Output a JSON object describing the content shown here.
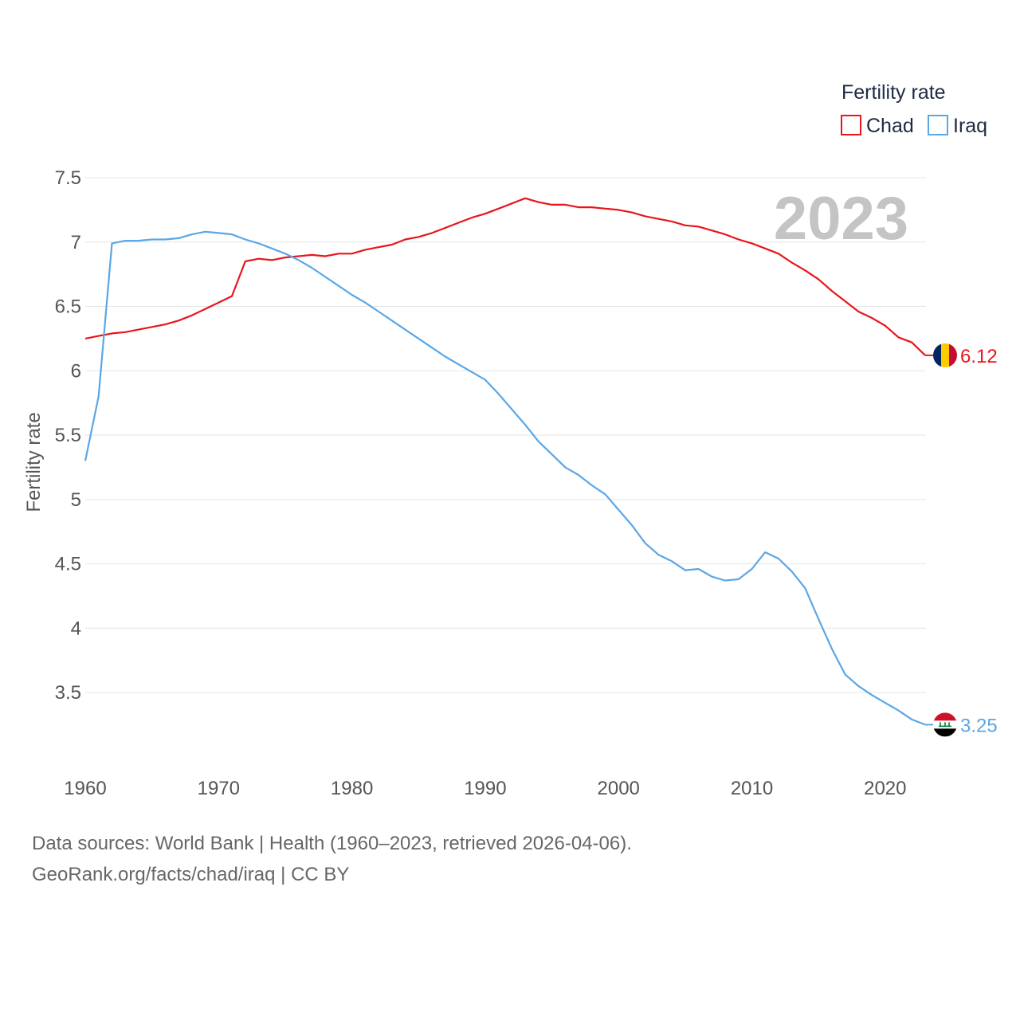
{
  "chart_data": {
    "type": "line",
    "year_label": "2023",
    "xlabel": "",
    "ylabel": "Fertility rate",
    "xlim": [
      1960,
      2023
    ],
    "ylim": [
      3.0,
      7.6
    ],
    "x_ticks": [
      "1960",
      "1970",
      "1980",
      "1990",
      "2000",
      "2010",
      "2020"
    ],
    "y_ticks": [
      "3.5",
      "4",
      "4.5",
      "5",
      "5.5",
      "6",
      "6.5",
      "7",
      "7.5"
    ],
    "grid": true,
    "legend": {
      "title": "Fertility rate",
      "placement": "top-right",
      "entries": [
        "Chad",
        "Iraq"
      ]
    },
    "x": [
      1960,
      1961,
      1962,
      1963,
      1964,
      1965,
      1966,
      1967,
      1968,
      1969,
      1970,
      1971,
      1972,
      1973,
      1974,
      1975,
      1976,
      1977,
      1978,
      1979,
      1980,
      1981,
      1982,
      1983,
      1984,
      1985,
      1986,
      1987,
      1988,
      1989,
      1990,
      1991,
      1992,
      1993,
      1994,
      1995,
      1996,
      1997,
      1998,
      1999,
      2000,
      2001,
      2002,
      2003,
      2004,
      2005,
      2006,
      2007,
      2008,
      2009,
      2010,
      2011,
      2012,
      2013,
      2014,
      2015,
      2016,
      2017,
      2018,
      2019,
      2020,
      2021,
      2022,
      2023
    ],
    "series": [
      {
        "name": "Chad",
        "color": "#e8151b",
        "end_label": "6.12",
        "values": [
          6.25,
          6.27,
          6.29,
          6.3,
          6.32,
          6.34,
          6.36,
          6.39,
          6.43,
          6.48,
          6.53,
          6.58,
          6.85,
          6.87,
          6.86,
          6.88,
          6.89,
          6.9,
          6.89,
          6.91,
          6.91,
          6.94,
          6.96,
          6.98,
          7.02,
          7.04,
          7.07,
          7.11,
          7.15,
          7.19,
          7.22,
          7.26,
          7.3,
          7.34,
          7.31,
          7.29,
          7.29,
          7.27,
          7.27,
          7.26,
          7.25,
          7.23,
          7.2,
          7.18,
          7.16,
          7.13,
          7.12,
          7.09,
          7.06,
          7.02,
          6.99,
          6.95,
          6.91,
          6.84,
          6.78,
          6.71,
          6.62,
          6.54,
          6.46,
          6.41,
          6.35,
          6.26,
          6.22,
          6.12
        ]
      },
      {
        "name": "Iraq",
        "color": "#5aa6e6",
        "end_label": "3.25",
        "values": [
          5.3,
          5.8,
          6.99,
          7.01,
          7.01,
          7.02,
          7.02,
          7.03,
          7.06,
          7.08,
          7.07,
          7.06,
          7.02,
          6.99,
          6.95,
          6.91,
          6.86,
          6.8,
          6.73,
          6.66,
          6.59,
          6.53,
          6.46,
          6.39,
          6.32,
          6.25,
          6.18,
          6.11,
          6.05,
          5.99,
          5.93,
          5.82,
          5.7,
          5.58,
          5.45,
          5.35,
          5.25,
          5.19,
          5.11,
          5.04,
          4.92,
          4.8,
          4.66,
          4.57,
          4.52,
          4.45,
          4.46,
          4.4,
          4.37,
          4.38,
          4.46,
          4.59,
          4.54,
          4.44,
          4.31,
          4.07,
          3.84,
          3.64,
          3.55,
          3.48,
          3.42,
          3.36,
          3.29,
          3.25
        ]
      }
    ]
  },
  "footer": {
    "source": "Data sources: World Bank | Health (1960–2023, retrieved 2026-04-06).",
    "credit": "GeoRank.org/facts/chad/iraq | CC BY"
  },
  "flags": {
    "chad": {
      "name": "chad-flag-icon",
      "colors": [
        "#002664",
        "#fecb00",
        "#c60c30"
      ]
    },
    "iraq": {
      "name": "iraq-flag-icon",
      "colors": [
        "#ce1126",
        "#ffffff",
        "#000000",
        "#007a3d"
      ]
    }
  }
}
